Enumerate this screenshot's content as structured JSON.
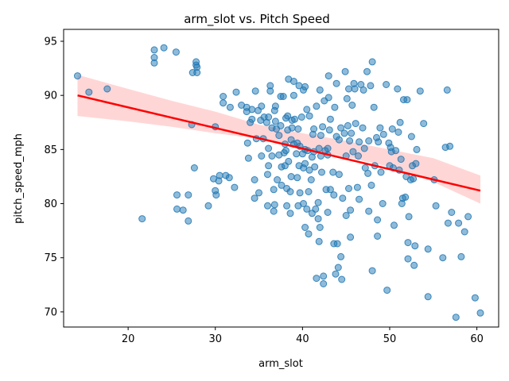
{
  "chart_data": {
    "type": "scatter",
    "title": "arm_slot vs. Pitch Speed",
    "xlabel": "arm_slot",
    "ylabel": "pitch_speed_mph",
    "xlim": [
      12.6,
      62.5
    ],
    "ylim": [
      68.6,
      96.1
    ],
    "xticks": [
      20,
      30,
      40,
      50,
      60
    ],
    "yticks": [
      70,
      75,
      80,
      85,
      90,
      95
    ],
    "grid": false,
    "legend": "none",
    "colors": {
      "points": "#1f77b4",
      "regression": "#ff0000",
      "band": "#ffcccc"
    },
    "regression": {
      "x": [
        14.2,
        60.4
      ],
      "y": [
        90.0,
        81.2
      ]
    },
    "confidence_band": {
      "x": [
        14.2,
        20,
        25,
        30,
        35,
        40,
        45,
        50,
        55,
        60.4
      ],
      "lower": [
        88.1,
        87.6,
        87.1,
        86.5,
        86.0,
        85.0,
        84.3,
        83.4,
        82.0,
        80.0
      ],
      "upper": [
        91.9,
        90.6,
        89.5,
        88.5,
        87.3,
        86.5,
        85.8,
        85.0,
        84.2,
        82.6
      ]
    },
    "series": [
      {
        "values": [
          [
            14.2,
            91.8
          ],
          [
            15.5,
            90.3
          ],
          [
            17.6,
            90.6
          ],
          [
            21.6,
            78.6
          ],
          [
            23.0,
            94.2
          ],
          [
            23.0,
            93.5
          ],
          [
            23.0,
            93.0
          ],
          [
            24.1,
            94.4
          ],
          [
            25.5,
            94.0
          ],
          [
            25.6,
            80.8
          ],
          [
            25.6,
            79.5
          ],
          [
            26.3,
            79.4
          ],
          [
            26.9,
            80.8
          ],
          [
            26.9,
            78.4
          ],
          [
            27.3,
            87.3
          ],
          [
            27.4,
            92.1
          ],
          [
            27.6,
            83.3
          ],
          [
            27.8,
            93.1
          ],
          [
            27.8,
            92.8
          ],
          [
            27.9,
            92.1
          ],
          [
            27.9,
            92.6
          ],
          [
            29.2,
            79.8
          ],
          [
            29.8,
            82.3
          ],
          [
            30.0,
            81.2
          ],
          [
            30.0,
            87.1
          ],
          [
            30.1,
            80.8
          ],
          [
            30.4,
            82.1
          ],
          [
            30.5,
            82.6
          ],
          [
            30.9,
            89.9
          ],
          [
            30.9,
            89.3
          ],
          [
            31.2,
            82.6
          ],
          [
            31.6,
            82.4
          ],
          [
            31.7,
            88.9
          ],
          [
            32.2,
            81.5
          ],
          [
            32.4,
            90.3
          ],
          [
            33.0,
            89.1
          ],
          [
            33.6,
            88.9
          ],
          [
            33.6,
            88.5
          ],
          [
            33.7,
            85.6
          ],
          [
            33.8,
            84.2
          ],
          [
            34.0,
            87.5
          ],
          [
            34.2,
            88.7
          ],
          [
            34.2,
            87.8
          ],
          [
            34.5,
            82.2
          ],
          [
            34.5,
            80.5
          ],
          [
            34.6,
            90.4
          ],
          [
            34.7,
            86.0
          ],
          [
            34.9,
            88.6
          ],
          [
            35.0,
            81.0
          ],
          [
            35.2,
            87.7
          ],
          [
            35.3,
            84.4
          ],
          [
            35.3,
            89.0
          ],
          [
            35.5,
            86.0
          ],
          [
            35.6,
            88.0
          ],
          [
            35.9,
            87.5
          ],
          [
            36.0,
            82.7
          ],
          [
            36.0,
            79.8
          ],
          [
            36.1,
            85.1
          ],
          [
            36.1,
            83.5
          ],
          [
            36.1,
            88.0
          ],
          [
            36.3,
            90.4
          ],
          [
            36.3,
            90.9
          ],
          [
            36.5,
            87.0
          ],
          [
            36.5,
            84.4
          ],
          [
            36.7,
            81.3
          ],
          [
            36.7,
            79.3
          ],
          [
            36.8,
            79.9
          ],
          [
            36.8,
            88.6
          ],
          [
            36.9,
            89.0
          ],
          [
            36.9,
            87.6
          ],
          [
            37.0,
            86.9
          ],
          [
            37.1,
            82.2
          ],
          [
            37.3,
            84.5
          ],
          [
            37.3,
            86.3
          ],
          [
            37.5,
            89.9
          ],
          [
            37.5,
            87.2
          ],
          [
            37.6,
            81.7
          ],
          [
            37.6,
            83.4
          ],
          [
            37.8,
            89.9
          ],
          [
            37.9,
            84.7
          ],
          [
            38.0,
            83.5
          ],
          [
            38.0,
            85.5
          ],
          [
            38.1,
            87.9
          ],
          [
            38.1,
            84.9
          ],
          [
            38.2,
            81.4
          ],
          [
            38.2,
            79.8
          ],
          [
            38.3,
            86.8
          ],
          [
            38.3,
            88.1
          ],
          [
            38.4,
            91.5
          ],
          [
            38.4,
            83.9
          ],
          [
            38.6,
            79.1
          ],
          [
            38.6,
            81.1
          ],
          [
            38.7,
            85.9
          ],
          [
            38.7,
            82.5
          ],
          [
            38.8,
            87.0
          ],
          [
            38.8,
            87.7
          ],
          [
            39.0,
            91.3
          ],
          [
            39.0,
            90.0
          ],
          [
            39.0,
            85.5
          ],
          [
            39.1,
            87.8
          ],
          [
            39.3,
            84.6
          ],
          [
            39.4,
            82.4
          ],
          [
            39.4,
            85.6
          ],
          [
            39.5,
            86.9
          ],
          [
            39.5,
            79.8
          ],
          [
            39.6,
            83.5
          ],
          [
            39.6,
            90.9
          ],
          [
            39.7,
            81.0
          ],
          [
            39.7,
            85.3
          ],
          [
            39.9,
            88.0
          ],
          [
            40.0,
            84.6
          ],
          [
            40.1,
            90.5
          ],
          [
            40.1,
            80.0
          ],
          [
            40.1,
            83.3
          ],
          [
            40.3,
            83.7
          ],
          [
            40.3,
            77.8
          ],
          [
            40.3,
            85.0
          ],
          [
            40.3,
            90.8
          ],
          [
            40.5,
            88.7
          ],
          [
            40.5,
            79.5
          ],
          [
            40.6,
            84.9
          ],
          [
            40.7,
            77.2
          ],
          [
            40.7,
            81.1
          ],
          [
            40.8,
            83.1
          ],
          [
            40.8,
            88.1
          ],
          [
            41.0,
            82.2
          ],
          [
            41.1,
            84.3
          ],
          [
            41.1,
            79.1
          ],
          [
            41.2,
            86.4
          ],
          [
            41.3,
            84.8
          ],
          [
            41.3,
            86.9
          ],
          [
            41.4,
            83.4
          ],
          [
            41.5,
            79.5
          ],
          [
            41.6,
            73.1
          ],
          [
            41.6,
            89.0
          ],
          [
            41.8,
            80.1
          ],
          [
            41.8,
            78.6
          ],
          [
            41.9,
            76.5
          ],
          [
            41.9,
            85.1
          ],
          [
            42.0,
            90.5
          ],
          [
            42.0,
            77.8
          ],
          [
            42.1,
            84.4
          ],
          [
            42.1,
            86.3
          ],
          [
            42.2,
            82.9
          ],
          [
            42.3,
            87.1
          ],
          [
            42.4,
            72.6
          ],
          [
            42.4,
            73.3
          ],
          [
            42.5,
            89.5
          ],
          [
            42.6,
            84.9
          ],
          [
            42.7,
            81.3
          ],
          [
            42.9,
            85.1
          ],
          [
            42.9,
            79.2
          ],
          [
            42.9,
            84.5
          ],
          [
            43.0,
            91.8
          ],
          [
            43.0,
            89.8
          ],
          [
            43.1,
            86.8
          ],
          [
            43.2,
            81.3
          ],
          [
            43.2,
            87.8
          ],
          [
            43.5,
            82.9
          ],
          [
            43.6,
            76.3
          ],
          [
            43.6,
            80.8
          ],
          [
            43.7,
            88.9
          ],
          [
            43.8,
            73.5
          ],
          [
            43.9,
            86.2
          ],
          [
            43.9,
            91.1
          ],
          [
            44.0,
            76.3
          ],
          [
            44.1,
            74.1
          ],
          [
            44.2,
            82.7
          ],
          [
            44.2,
            85.9
          ],
          [
            44.4,
            87.0
          ],
          [
            44.4,
            75.1
          ],
          [
            44.5,
            73.0
          ],
          [
            44.6,
            80.5
          ],
          [
            44.8,
            86.5
          ],
          [
            44.9,
            92.2
          ],
          [
            45.0,
            78.9
          ],
          [
            45.0,
            84.4
          ],
          [
            45.1,
            89.7
          ],
          [
            45.2,
            87.2
          ],
          [
            45.3,
            81.4
          ],
          [
            45.3,
            90.6
          ],
          [
            45.4,
            85.8
          ],
          [
            45.5,
            76.9
          ],
          [
            45.5,
            79.4
          ],
          [
            45.6,
            86.5
          ],
          [
            45.7,
            89.1
          ],
          [
            45.8,
            84.8
          ],
          [
            45.9,
            91.1
          ],
          [
            46.0,
            90.6
          ],
          [
            46.1,
            87.4
          ],
          [
            46.3,
            81.5
          ],
          [
            46.4,
            84.4
          ],
          [
            46.5,
            85.7
          ],
          [
            46.5,
            80.4
          ],
          [
            46.7,
            91.0
          ],
          [
            46.9,
            87.0
          ],
          [
            47.0,
            90.5
          ],
          [
            47.1,
            85.1
          ],
          [
            47.2,
            83.3
          ],
          [
            47.4,
            92.2
          ],
          [
            47.5,
            82.8
          ],
          [
            47.6,
            79.3
          ],
          [
            47.6,
            85.8
          ],
          [
            47.8,
            90.9
          ],
          [
            47.9,
            81.7
          ],
          [
            48.0,
            73.8
          ],
          [
            48.0,
            93.1
          ],
          [
            48.2,
            88.9
          ],
          [
            48.3,
            83.5
          ],
          [
            48.5,
            86.1
          ],
          [
            48.6,
            78.5
          ],
          [
            48.6,
            77.0
          ],
          [
            48.7,
            85.7
          ],
          [
            48.9,
            87.0
          ],
          [
            49.0,
            82.9
          ],
          [
            49.2,
            80.0
          ],
          [
            49.3,
            86.4
          ],
          [
            49.6,
            91.0
          ],
          [
            49.7,
            72.0
          ],
          [
            49.9,
            85.6
          ],
          [
            50.0,
            83.5
          ],
          [
            50.1,
            85.2
          ],
          [
            50.2,
            84.8
          ],
          [
            50.3,
            86.9
          ],
          [
            50.4,
            83.3
          ],
          [
            50.5,
            78.0
          ],
          [
            50.7,
            84.9
          ],
          [
            50.9,
            90.6
          ],
          [
            51.0,
            86.6
          ],
          [
            51.1,
            83.1
          ],
          [
            51.2,
            87.5
          ],
          [
            51.3,
            84.1
          ],
          [
            51.4,
            80.0
          ],
          [
            51.5,
            80.5
          ],
          [
            51.6,
            89.6
          ],
          [
            51.8,
            80.6
          ],
          [
            51.9,
            82.5
          ],
          [
            52.0,
            89.6
          ],
          [
            52.1,
            74.9
          ],
          [
            52.1,
            76.4
          ],
          [
            52.2,
            78.8
          ],
          [
            52.4,
            82.2
          ],
          [
            52.5,
            86.2
          ],
          [
            52.6,
            83.5
          ],
          [
            52.7,
            82.3
          ],
          [
            52.8,
            74.3
          ],
          [
            52.9,
            76.1
          ],
          [
            53.0,
            83.7
          ],
          [
            53.1,
            85.0
          ],
          [
            53.5,
            90.4
          ],
          [
            53.9,
            87.4
          ],
          [
            54.4,
            71.4
          ],
          [
            54.4,
            75.8
          ],
          [
            55.1,
            82.2
          ],
          [
            55.3,
            79.8
          ],
          [
            56.1,
            75.0
          ],
          [
            56.4,
            85.2
          ],
          [
            56.6,
            90.5
          ],
          [
            56.7,
            78.2
          ],
          [
            56.9,
            85.3
          ],
          [
            57.1,
            79.2
          ],
          [
            57.6,
            69.5
          ],
          [
            57.9,
            78.2
          ],
          [
            58.2,
            75.1
          ],
          [
            58.6,
            77.4
          ],
          [
            59.0,
            78.8
          ],
          [
            59.8,
            71.3
          ],
          [
            60.4,
            69.9
          ]
        ]
      }
    ]
  }
}
